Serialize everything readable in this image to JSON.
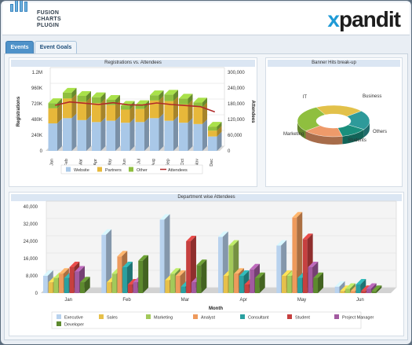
{
  "header": {
    "plugin_logo": {
      "line1": "FUSION",
      "line2": "CHARTS",
      "line3": "PLUGIN"
    },
    "brand_logo": "xpandit"
  },
  "tabs": [
    {
      "label": "Events",
      "active": true
    },
    {
      "label": "Event Goals",
      "active": false
    }
  ],
  "colors": {
    "Website": "#a9c8e8",
    "Partners": "#e7b83a",
    "Other": "#8fbf3f",
    "Attendees": "#b12a2a",
    "Executive": "#b8d2ee",
    "Sales": "#e6c04a",
    "Marketing": "#a3c95a",
    "Analyst": "#ee9a5c",
    "Consultant": "#2aa0a0",
    "Student": "#c6403f",
    "Project Manager": "#a25aa0",
    "Developer": "#5d8a2e"
  },
  "chart_data": [
    {
      "type": "bar",
      "title": "Registrations vs. Attendees",
      "ylabel": "Registrations",
      "y2label": "Attendees",
      "categories": [
        "Jan",
        "Feb",
        "Mar",
        "Apr",
        "May",
        "Jun",
        "Jul",
        "Aug",
        "Sep",
        "Oct",
        "Nov",
        "Dec"
      ],
      "yticks": [
        "0",
        "240K",
        "480K",
        "720K",
        "960K",
        "1.2M"
      ],
      "y2ticks": [
        "0",
        "60,000",
        "120,000",
        "180,000",
        "240,000",
        "300,000"
      ],
      "ylim": [
        0,
        1200000
      ],
      "y2lim": [
        0,
        300000
      ],
      "series": [
        {
          "name": "Website",
          "values": [
            420000,
            500000,
            470000,
            440000,
            460000,
            430000,
            440000,
            500000,
            460000,
            430000,
            410000,
            220000
          ]
        },
        {
          "name": "Partners",
          "values": [
            230000,
            300000,
            280000,
            290000,
            240000,
            200000,
            200000,
            270000,
            300000,
            280000,
            260000,
            90000
          ]
        },
        {
          "name": "Other",
          "values": [
            80000,
            90000,
            90000,
            90000,
            80000,
            60000,
            60000,
            80000,
            100000,
            90000,
            70000,
            60000
          ]
        },
        {
          "name": "Attendees",
          "values": [
            165000,
            178000,
            173000,
            168000,
            175000,
            167000,
            166000,
            174000,
            168000,
            164000,
            160000,
            140000
          ]
        }
      ],
      "legend": "bottom"
    },
    {
      "type": "pie",
      "title": "Banner Hits break-up",
      "categories": [
        "IT",
        "Business",
        "Others",
        "Students",
        "Marketing"
      ],
      "values": [
        22,
        20,
        12,
        18,
        28
      ]
    },
    {
      "type": "bar",
      "title": "Department wise Attendees",
      "xlabel": "Month",
      "categories": [
        "Jan",
        "Feb",
        "Mar",
        "Apr",
        "May",
        "Jun"
      ],
      "yticks": [
        "0",
        "8,000",
        "16,000",
        "24,000",
        "32,000",
        "40,000"
      ],
      "ylim": [
        0,
        40000
      ],
      "series": [
        {
          "name": "Executive",
          "values": [
            8000,
            27000,
            34000,
            26000,
            22000,
            3000
          ]
        },
        {
          "name": "Sales",
          "values": [
            5000,
            5000,
            6000,
            8000,
            8000,
            1000
          ]
        },
        {
          "name": "Marketing",
          "values": [
            7000,
            9000,
            9000,
            22000,
            8000,
            2000
          ]
        },
        {
          "name": "Analyst",
          "values": [
            9000,
            17000,
            8000,
            9000,
            35000,
            1000
          ]
        },
        {
          "name": "Consultant",
          "values": [
            7000,
            12000,
            3000,
            8000,
            7000,
            4000
          ]
        },
        {
          "name": "Student",
          "values": [
            12000,
            4000,
            24000,
            4000,
            25000,
            1000
          ]
        },
        {
          "name": "Project Manager",
          "values": [
            10000,
            5000,
            5000,
            11000,
            12000,
            2000
          ]
        },
        {
          "name": "Developer",
          "values": [
            5000,
            15000,
            13000,
            7000,
            7000,
            1000
          ]
        }
      ],
      "legend": "bottom"
    }
  ]
}
